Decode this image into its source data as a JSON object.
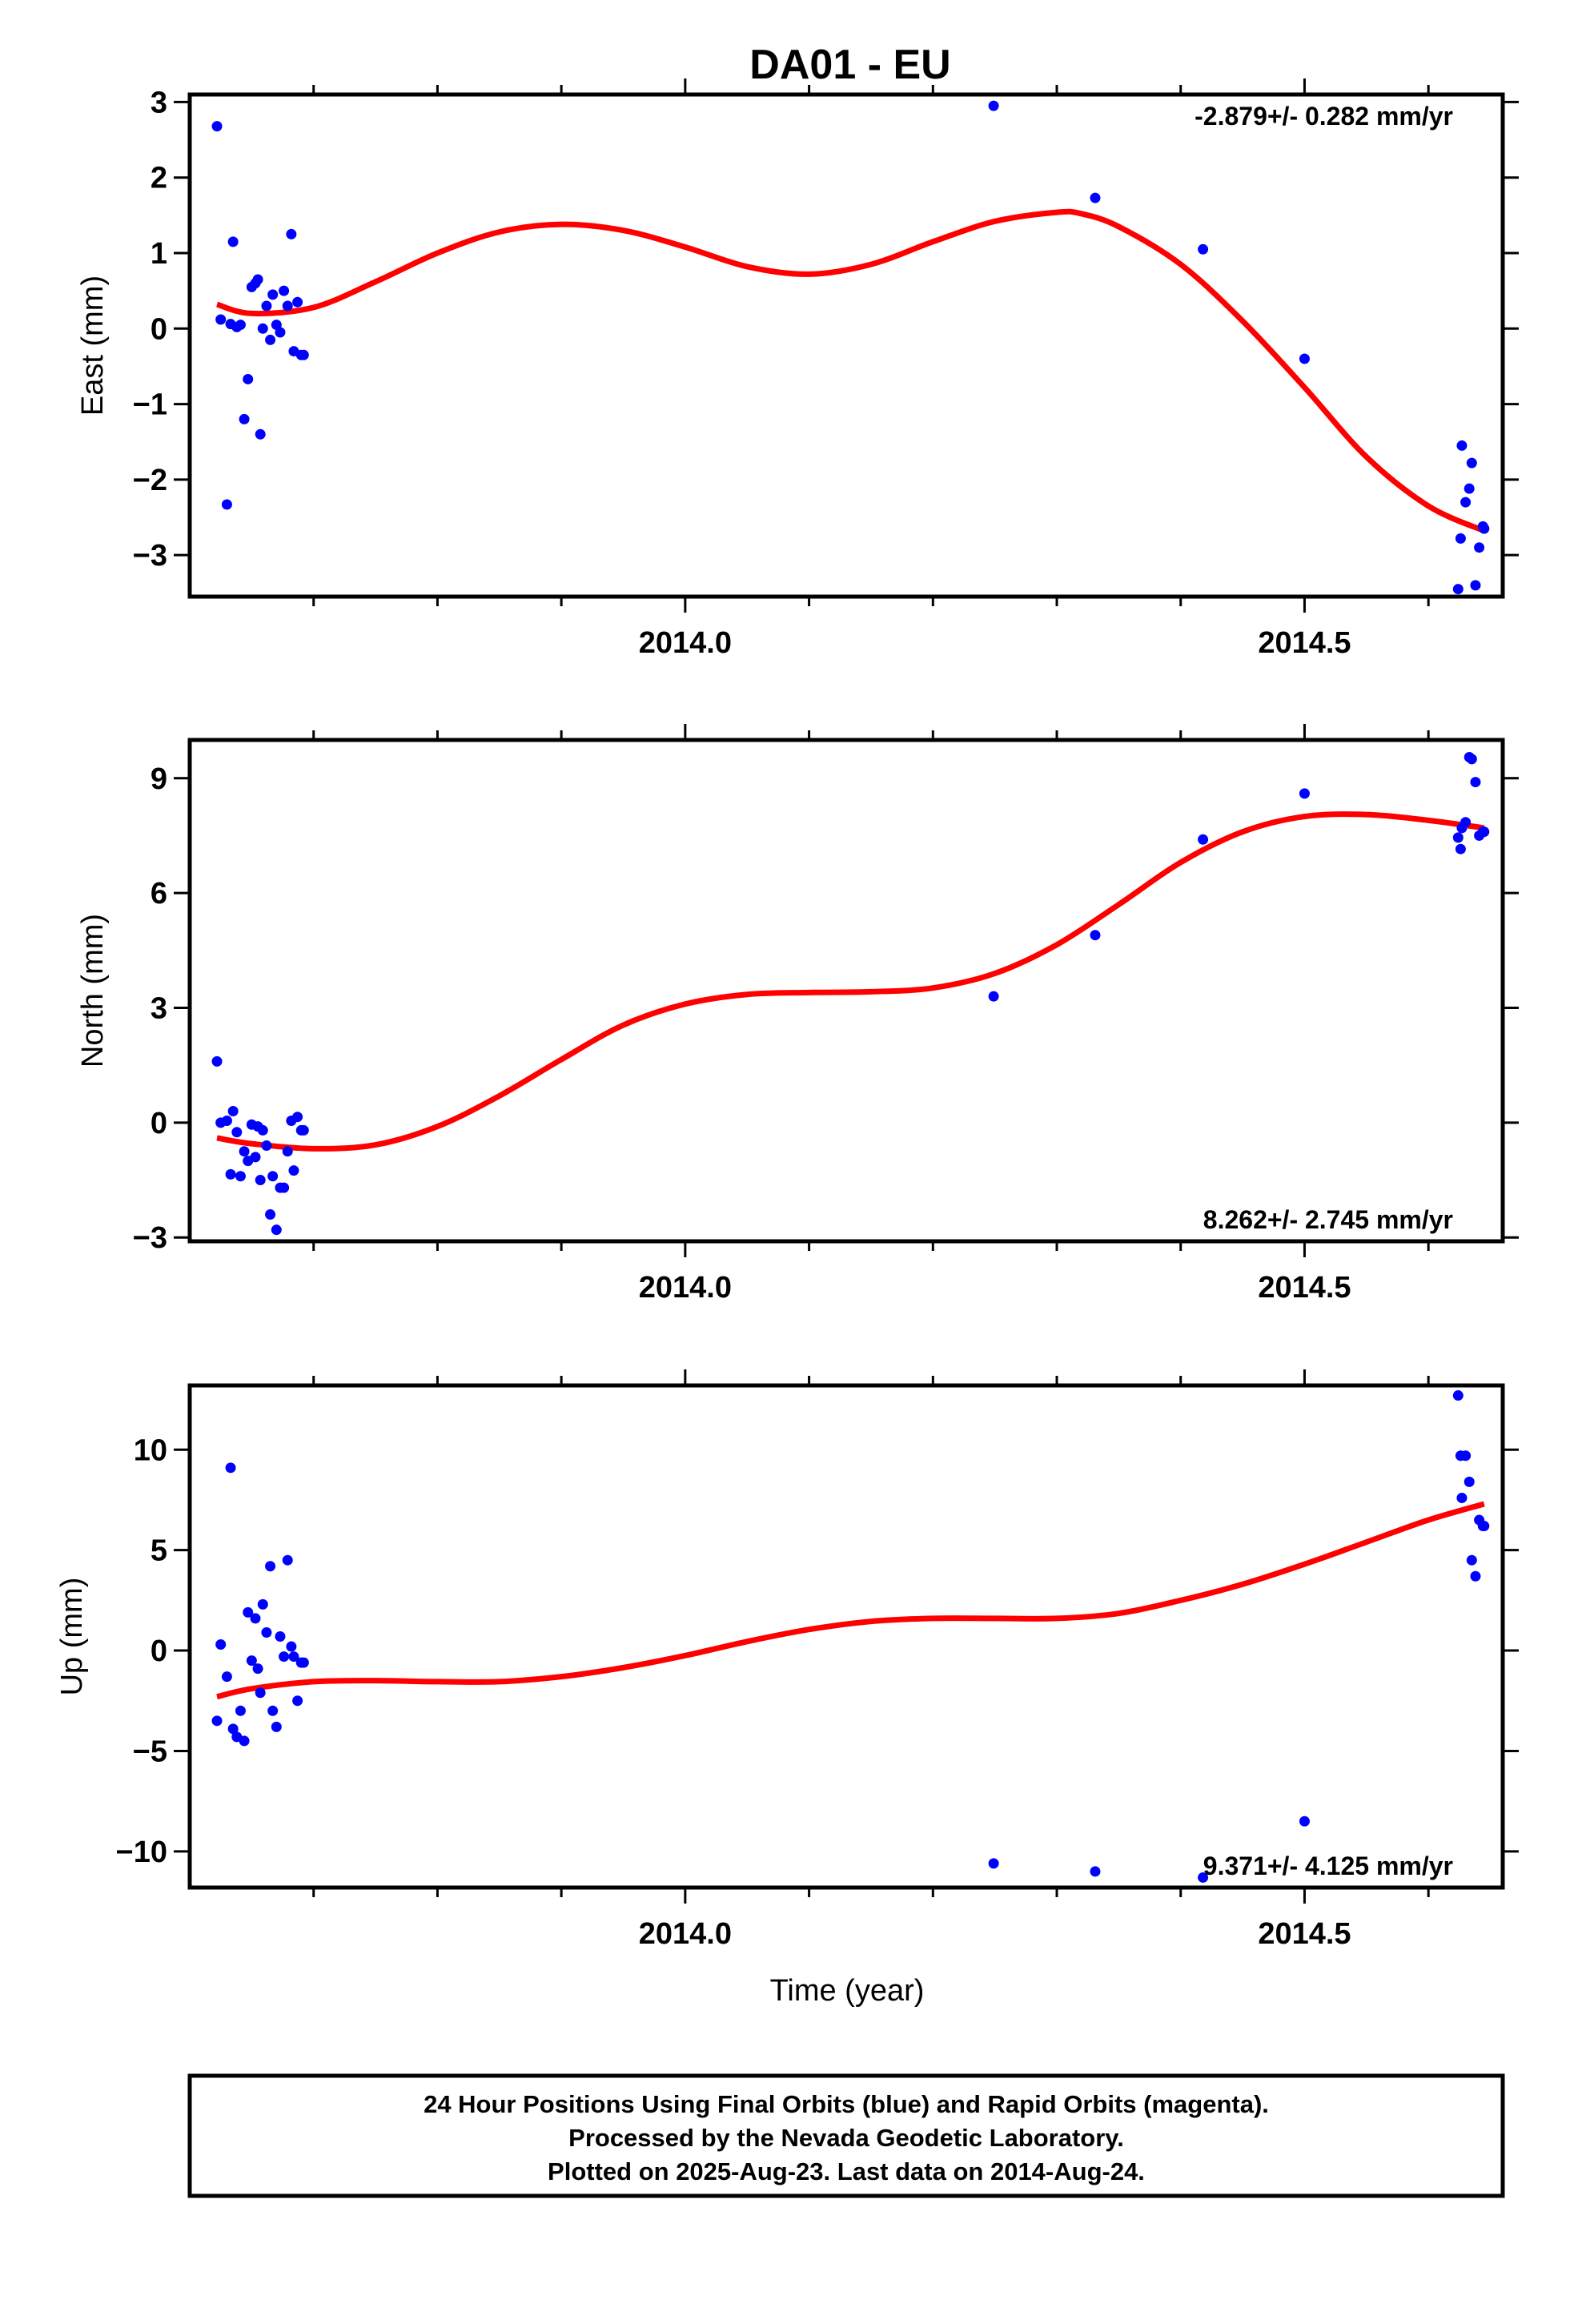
{
  "title": "DA01 - EU",
  "xlabel": "Time (year)",
  "footer": [
    "24 Hour Positions Using Final Orbits (blue) and Rapid Orbits (magenta).",
    "Processed by the Nevada Geodetic Laboratory.",
    "Plotted on 2025-Aug-23. Last data on 2014-Aug-24."
  ],
  "colors": {
    "points": "#0000ff",
    "fit": "#ff0000",
    "frame": "#000000"
  },
  "chart_data": [
    {
      "type": "scatter",
      "ylabel": "East (mm)",
      "rate": "-2.879+/- 0.282 mm/yr",
      "xlim": [
        2013.6,
        2014.66
      ],
      "ylim": [
        -3.55,
        3.1
      ],
      "yticks": [
        -3,
        -2,
        -1,
        0,
        1,
        2,
        3
      ],
      "ytick_labels": [
        "−3",
        "−2",
        "−1",
        "0",
        "1",
        "2",
        "3"
      ],
      "xticks": [
        2014.0,
        2014.5
      ],
      "xtick_labels": [
        "2014.0",
        "2014.5"
      ],
      "points": {
        "x": [
          2013.622,
          2013.625,
          2013.63,
          2013.633,
          2013.635,
          2013.638,
          2013.641,
          2013.644,
          2013.647,
          2013.65,
          2013.653,
          2013.655,
          2013.657,
          2013.659,
          2013.662,
          2013.665,
          2013.667,
          2013.67,
          2013.673,
          2013.676,
          2013.679,
          2013.682,
          2013.684,
          2013.687,
          2013.69,
          2013.692,
          2014.249,
          2014.331,
          2014.418,
          2014.5,
          2014.624,
          2014.626,
          2014.627,
          2014.63,
          2014.633,
          2014.635,
          2014.638,
          2014.641,
          2014.644,
          2014.645
        ],
        "y": [
          2.68,
          0.12,
          -2.33,
          0.06,
          1.15,
          0.02,
          0.05,
          -1.2,
          -0.67,
          0.55,
          0.6,
          0.65,
          -1.4,
          0.0,
          0.3,
          -0.15,
          0.45,
          0.05,
          -0.05,
          0.5,
          0.3,
          1.25,
          -0.3,
          0.35,
          -0.35,
          -0.35,
          2.95,
          1.73,
          1.05,
          -0.4,
          -3.45,
          -2.78,
          -1.55,
          -2.3,
          -2.12,
          -1.78,
          -3.4,
          -2.9,
          -2.62,
          -2.65
        ]
      },
      "fit": {
        "x": [
          2013.622,
          2013.65,
          2013.7,
          2013.75,
          2013.8,
          2013.85,
          2013.9,
          2013.95,
          2014.0,
          2014.05,
          2014.1,
          2014.15,
          2014.2,
          2014.25,
          2014.3,
          2014.32,
          2014.35,
          2014.4,
          2014.45,
          2014.5,
          2014.55,
          2014.6,
          2014.645
        ],
        "y": [
          0.32,
          0.2,
          0.28,
          0.62,
          1.0,
          1.28,
          1.38,
          1.3,
          1.08,
          0.82,
          0.72,
          0.85,
          1.15,
          1.42,
          1.54,
          1.52,
          1.35,
          0.85,
          0.1,
          -0.78,
          -1.7,
          -2.35,
          -2.68
        ]
      }
    },
    {
      "type": "scatter",
      "ylabel": "North (mm)",
      "rate": "8.262+/- 2.745 mm/yr",
      "xlim": [
        2013.6,
        2014.66
      ],
      "ylim": [
        -3.1,
        10.0
      ],
      "yticks": [
        -3,
        0,
        3,
        6,
        9
      ],
      "ytick_labels": [
        "−3",
        "0",
        "3",
        "6",
        "9"
      ],
      "xticks": [
        2014.0,
        2014.5
      ],
      "xtick_labels": [
        "2014.0",
        "2014.5"
      ],
      "points": {
        "x": [
          2013.622,
          2013.625,
          2013.63,
          2013.633,
          2013.635,
          2013.638,
          2013.641,
          2013.644,
          2013.647,
          2013.65,
          2013.653,
          2013.655,
          2013.657,
          2013.659,
          2013.662,
          2013.665,
          2013.667,
          2013.67,
          2013.673,
          2013.676,
          2013.679,
          2013.682,
          2013.684,
          2013.687,
          2013.69,
          2013.692,
          2014.249,
          2014.331,
          2014.418,
          2014.5,
          2014.624,
          2014.626,
          2014.627,
          2014.63,
          2014.633,
          2014.635,
          2014.638,
          2014.641,
          2014.644,
          2014.645
        ],
        "y": [
          1.6,
          0.0,
          0.05,
          -1.35,
          0.3,
          -0.25,
          -1.4,
          -0.75,
          -1.0,
          -0.05,
          -0.9,
          -0.1,
          -1.5,
          -0.2,
          -0.6,
          -2.4,
          -1.4,
          -2.8,
          -1.7,
          -1.7,
          -0.75,
          0.05,
          -1.25,
          0.15,
          -0.2,
          -0.2,
          3.3,
          4.9,
          7.4,
          8.6,
          7.45,
          7.15,
          7.7,
          7.85,
          9.55,
          9.5,
          8.9,
          7.5,
          7.6,
          7.6
        ]
      },
      "fit": {
        "x": [
          2013.622,
          2013.65,
          2013.7,
          2013.75,
          2013.8,
          2013.85,
          2013.9,
          2013.95,
          2014.0,
          2014.05,
          2014.1,
          2014.15,
          2014.2,
          2014.25,
          2014.3,
          2014.35,
          2014.4,
          2014.45,
          2014.5,
          2014.55,
          2014.6,
          2014.645
        ],
        "y": [
          -0.4,
          -0.55,
          -0.68,
          -0.58,
          -0.1,
          0.7,
          1.65,
          2.55,
          3.1,
          3.35,
          3.4,
          3.42,
          3.52,
          3.9,
          4.65,
          5.7,
          6.8,
          7.6,
          8.0,
          8.05,
          7.9,
          7.7
        ]
      }
    },
    {
      "type": "scatter",
      "ylabel": "Up (mm)",
      "rate": "9.371+/- 4.125 mm/yr",
      "xlim": [
        2013.6,
        2014.66
      ],
      "ylim": [
        -11.8,
        13.2
      ],
      "yticks": [
        -10,
        -5,
        0,
        5,
        10
      ],
      "ytick_labels": [
        "−10",
        "−5",
        "0",
        "5",
        "10"
      ],
      "xticks": [
        2014.0,
        2014.5
      ],
      "xtick_labels": [
        "2014.0",
        "2014.5"
      ],
      "points": {
        "x": [
          2013.622,
          2013.625,
          2013.63,
          2013.633,
          2013.635,
          2013.638,
          2013.641,
          2013.644,
          2013.647,
          2013.65,
          2013.653,
          2013.655,
          2013.657,
          2013.659,
          2013.662,
          2013.665,
          2013.667,
          2013.67,
          2013.673,
          2013.676,
          2013.679,
          2013.682,
          2013.684,
          2013.687,
          2013.69,
          2013.692,
          2014.249,
          2014.331,
          2014.418,
          2014.5,
          2014.624,
          2014.626,
          2014.627,
          2014.63,
          2014.633,
          2014.635,
          2014.638,
          2014.641,
          2014.644,
          2014.645
        ],
        "y": [
          -3.5,
          0.3,
          -1.3,
          9.1,
          -3.9,
          -4.3,
          -3.0,
          -4.5,
          1.9,
          -0.5,
          1.6,
          -0.9,
          -2.1,
          2.3,
          0.9,
          4.2,
          -3.0,
          -3.8,
          0.7,
          -0.3,
          4.5,
          0.2,
          -0.3,
          -2.5,
          -0.6,
          -0.6,
          -10.6,
          -11.0,
          -11.3,
          -8.5,
          12.7,
          9.7,
          7.6,
          9.7,
          8.4,
          4.5,
          3.7,
          6.5,
          6.2,
          6.2
        ]
      },
      "fit": {
        "x": [
          2013.622,
          2013.65,
          2013.7,
          2013.75,
          2013.8,
          2013.85,
          2013.9,
          2013.95,
          2014.0,
          2014.05,
          2014.1,
          2014.15,
          2014.2,
          2014.25,
          2014.3,
          2014.35,
          2014.4,
          2014.45,
          2014.5,
          2014.55,
          2014.6,
          2014.645
        ],
        "y": [
          -2.3,
          -1.9,
          -1.55,
          -1.5,
          -1.55,
          -1.55,
          -1.3,
          -0.85,
          -0.25,
          0.45,
          1.05,
          1.45,
          1.6,
          1.6,
          1.6,
          1.85,
          2.5,
          3.3,
          4.3,
          5.4,
          6.5,
          7.3
        ]
      }
    }
  ]
}
